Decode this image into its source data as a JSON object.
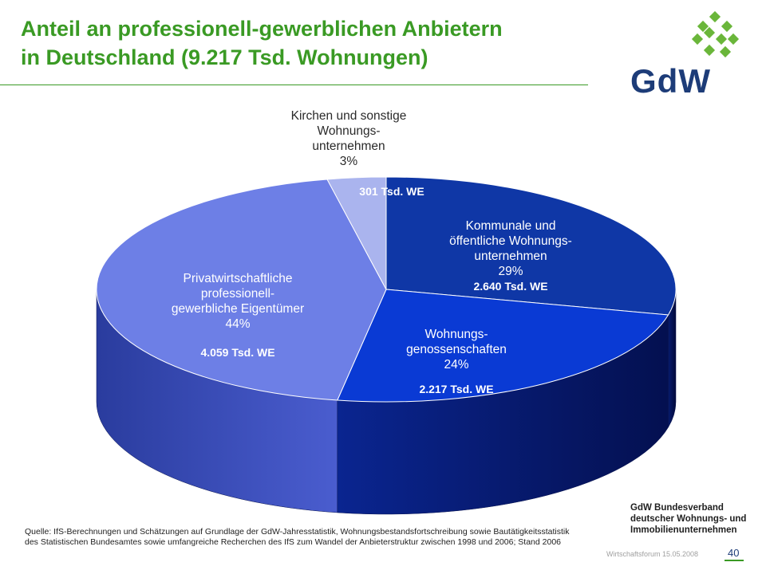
{
  "header": {
    "title_line1": "Anteil an professionell-gewerblichen Anbietern",
    "title_line2": "in Deutschland (9.217 Tsd. Wohnungen)"
  },
  "logo": {
    "text": "GdW",
    "icon": "gdw-green-squares-logo-icon"
  },
  "colors": {
    "title": "#3a9a24",
    "kommunale": "#0f37a6",
    "genossenschaften": "#0a3ad4",
    "privat": "#6d7fe6",
    "kirchen": "#aab4ee",
    "brand_blue": "#1d3c78"
  },
  "chart_data": {
    "type": "pie",
    "style": "3d",
    "title": "",
    "unit": "Tsd. WE",
    "slices": [
      {
        "label_lines": [
          "Kommunale und",
          "öffentliche Wohnungs-",
          "unternehmen"
        ],
        "percent": "29%",
        "value_label": "2.640 Tsd. WE",
        "value": 2640,
        "share": 29,
        "color": "#0f37a6"
      },
      {
        "label_lines": [
          "Wohnungs-",
          "genossenschaften"
        ],
        "percent": "24%",
        "value_label": "2.217 Tsd. WE",
        "value": 2217,
        "share": 24,
        "color": "#0a3ad4"
      },
      {
        "label_lines": [
          "Privatwirtschaftliche",
          "professionell-",
          "gewerbliche Eigentümer"
        ],
        "percent": "44%",
        "value_label": "4.059 Tsd. WE",
        "value": 4059,
        "share": 44,
        "color": "#6d7fe6"
      },
      {
        "label_lines": [
          "Kirchen und sonstige",
          "Wohnungs-",
          "unternehmen"
        ],
        "percent": "3%",
        "value_label": "301 Tsd. WE",
        "value": 301,
        "share": 3,
        "color": "#aab4ee"
      }
    ]
  },
  "source": {
    "text": "Quelle: IfS-Berechnungen und Schätzungen auf Grundlage der GdW-Jahresstatistik, Wohnungsbestandsfortschreibung sowie Bautätigkeitsstatistik des Statistischen Bundesamtes sowie umfangreiche Recherchen des IfS zum Wandel der Anbieterstruktur zwischen 1998 und 2006; Stand 2006"
  },
  "org": {
    "line1": "GdW Bundesverband",
    "line2": "deutscher Wohnungs- und",
    "line3": "Immobilienunternehmen"
  },
  "footer": {
    "event": "Wirtschaftsforum 15.05.2008",
    "page": "40"
  }
}
